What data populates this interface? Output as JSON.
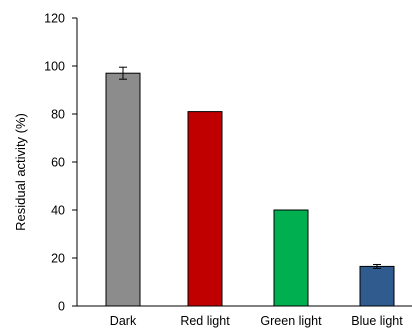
{
  "chart_data": {
    "type": "bar",
    "title": "",
    "xlabel": "",
    "ylabel": "Residual activity (%)",
    "ylim": [
      0,
      120
    ],
    "yticks": [
      0,
      20,
      40,
      60,
      80,
      100,
      120
    ],
    "categories": [
      "Dark",
      "Red light",
      "Green light",
      "Blue light"
    ],
    "values": [
      97,
      81,
      40,
      16.5
    ],
    "errors": [
      2.5,
      0,
      0,
      0.8
    ],
    "colors": [
      "#8c8c8c",
      "#c00000",
      "#00b050",
      "#2f5b8e"
    ],
    "grid": false,
    "legend": "none"
  }
}
